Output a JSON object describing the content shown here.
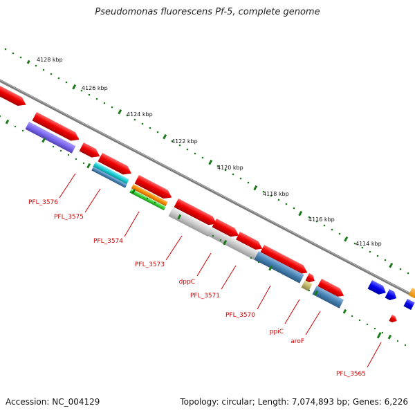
{
  "title": "Pseudomonas fluorescens Pf-5, complete genome",
  "footer": {
    "accession": "Accession: NC_004129",
    "topology": "Topology: circular; Length: 7,074,893 bp; Genes: 6,226"
  },
  "scale_unit": "kbp",
  "scale_labels": [
    "4128 kbp",
    "4126 kbp",
    "4124 kbp",
    "4122 kbp",
    "4120 kbp",
    "4118 kbp",
    "4116 kbp",
    "4114 kbp"
  ],
  "gene_labels": [
    "PFL_3576",
    "PFL_3575",
    "PFL_3574",
    "PFL_3573",
    "dppC",
    "PFL_3571",
    "PFL_3570",
    "ppiC",
    "aroF",
    "PFL_3565"
  ],
  "colors": {
    "backbone": "#808080",
    "tick": "#1a7a1a",
    "gene_cds": "#ee0000",
    "label": "#cc0000",
    "cog_purple": "#7b68ee",
    "cog_cyan": "#19c8d0",
    "cog_steelblue": "#4682b4",
    "cog_orange": "#ff8c00",
    "cog_green": "#32cd32",
    "cog_lightgray": "#c8c8c8",
    "cog_khaki": "#bdb76b",
    "other_blue": "#0000ee"
  }
}
